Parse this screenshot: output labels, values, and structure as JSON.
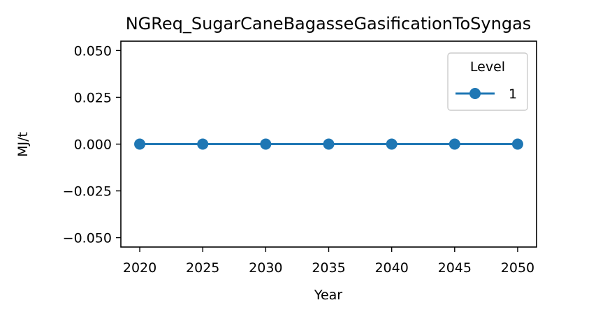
{
  "chart_data": {
    "type": "line",
    "title": "NGReq_SugarCaneBagasseGasificationToSyngas",
    "xlabel": "Year",
    "ylabel": "MJ/t",
    "x": [
      2020,
      2025,
      2030,
      2035,
      2040,
      2045,
      2050
    ],
    "xticks": [
      "2020",
      "2025",
      "2030",
      "2035",
      "2040",
      "2045",
      "2050"
    ],
    "yticks": [
      "0.050",
      "0.025",
      "0.000",
      "−0.025",
      "−0.050"
    ],
    "ytick_values": [
      0.05,
      0.025,
      0,
      -0.025,
      -0.05
    ],
    "xlim": [
      2018.5,
      2051.5
    ],
    "ylim": [
      -0.055,
      0.055
    ],
    "grid": false,
    "legend": {
      "title": "Level",
      "placement": "top-right"
    },
    "series": [
      {
        "name": "1",
        "color": "#1f77b4",
        "marker": "circle",
        "values": [
          0,
          0,
          0,
          0,
          0,
          0,
          0
        ]
      }
    ]
  }
}
